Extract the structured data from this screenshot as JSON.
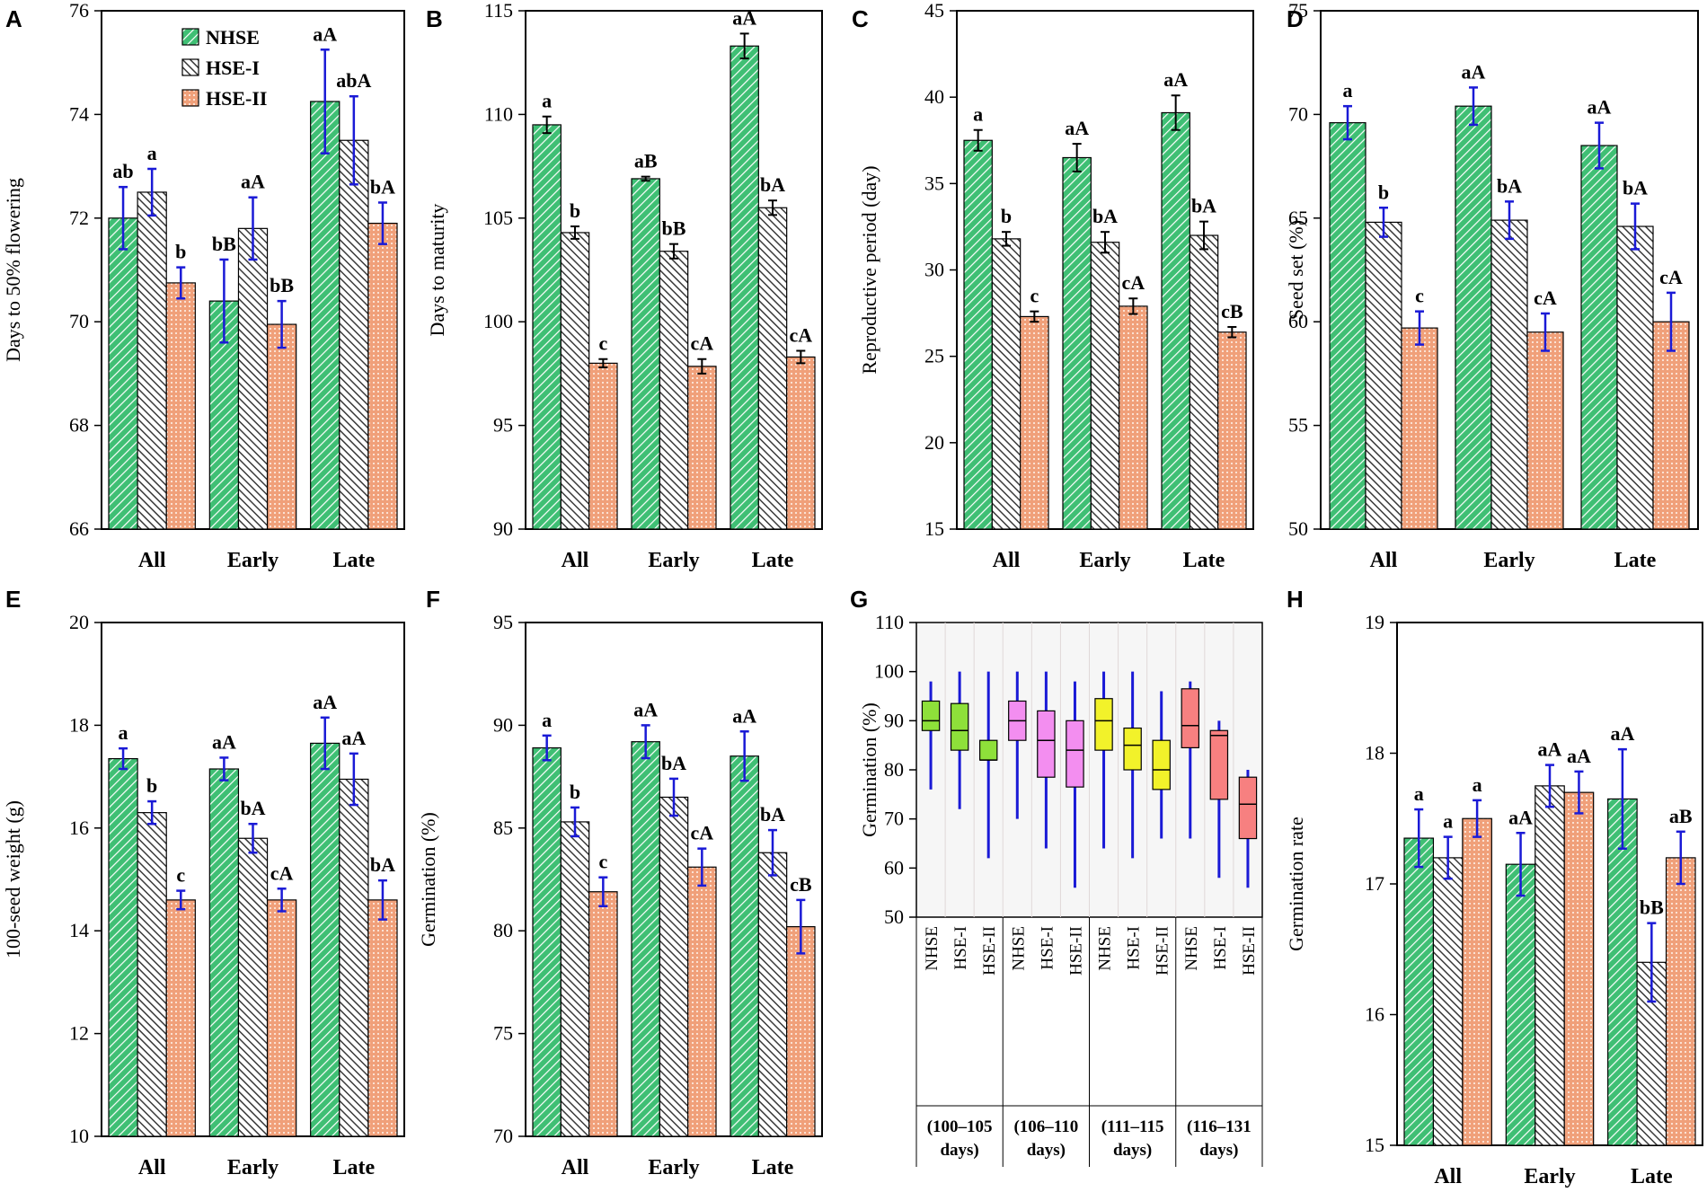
{
  "colors": {
    "nhse": "#3fbf74",
    "hse1": "#3a3a3a",
    "hse2": "#f0a07a",
    "error_bar": "#1a1ad6"
  },
  "legend": [
    "NHSE",
    "HSE-I",
    "HSE-II"
  ],
  "chart_data": [
    {
      "panel": "A",
      "type": "bar",
      "ylabel": "Days to 50% flowering",
      "ylim": [
        66,
        76
      ],
      "yticks": [
        66,
        68,
        70,
        72,
        74,
        76
      ],
      "categories": [
        "All",
        "Early",
        "Late"
      ],
      "show_legend": true,
      "series": [
        {
          "name": "NHSE",
          "values": [
            72.0,
            70.4,
            74.25
          ],
          "errors": [
            0.6,
            0.8,
            1.0
          ],
          "labels": [
            "ab",
            "",
            "aA"
          ]
        },
        {
          "name": "HSE-I",
          "values": [
            72.5,
            71.8,
            73.5
          ],
          "errors": [
            0.45,
            0.6,
            0.85
          ],
          "labels": [
            "a",
            "aA",
            "abA"
          ]
        },
        {
          "name": "HSE-II",
          "values": [
            70.75,
            69.95,
            71.9
          ],
          "errors": [
            0.3,
            0.45,
            0.4
          ],
          "labels": [
            "b",
            "bB",
            "bA"
          ]
        }
      ],
      "extra_labels": [
        {
          "category": 1,
          "series": 0,
          "text": "bB"
        }
      ]
    },
    {
      "panel": "B",
      "type": "bar",
      "ylabel": "Days to maturity",
      "ylim": [
        90,
        115
      ],
      "yticks": [
        90,
        95,
        100,
        105,
        110,
        115
      ],
      "categories": [
        "All",
        "Early",
        "Late"
      ],
      "show_legend": false,
      "series": [
        {
          "name": "NHSE",
          "values": [
            109.5,
            106.9,
            113.3
          ],
          "errors": [
            0.4,
            0.1,
            0.6
          ],
          "labels": [
            "a",
            "aB",
            "aA"
          ]
        },
        {
          "name": "HSE-I",
          "values": [
            104.3,
            103.4,
            105.5
          ],
          "errors": [
            0.3,
            0.35,
            0.35
          ],
          "labels": [
            "b",
            "bB",
            "bA"
          ]
        },
        {
          "name": "HSE-II",
          "values": [
            98.0,
            97.85,
            98.3
          ],
          "errors": [
            0.2,
            0.35,
            0.3
          ],
          "labels": [
            "c",
            "cA",
            "cA"
          ]
        }
      ],
      "black_errors": true
    },
    {
      "panel": "C",
      "type": "bar",
      "ylabel": "Reproductive period (day)",
      "ylim": [
        15,
        45
      ],
      "yticks": [
        15,
        20,
        25,
        30,
        35,
        40,
        45
      ],
      "categories": [
        "All",
        "Early",
        "Late"
      ],
      "show_legend": false,
      "series": [
        {
          "name": "NHSE",
          "values": [
            37.5,
            36.5,
            39.1
          ],
          "errors": [
            0.6,
            0.8,
            1.0
          ],
          "labels": [
            "a",
            "aA",
            "aA"
          ]
        },
        {
          "name": "HSE-I",
          "values": [
            31.8,
            31.6,
            32.0
          ],
          "errors": [
            0.4,
            0.6,
            0.8
          ],
          "labels": [
            "b",
            "bA",
            "bA"
          ]
        },
        {
          "name": "HSE-II",
          "values": [
            27.3,
            27.9,
            26.4
          ],
          "errors": [
            0.3,
            0.45,
            0.3
          ],
          "labels": [
            "c",
            "cA",
            "cB"
          ]
        }
      ],
      "black_errors": true
    },
    {
      "panel": "D",
      "type": "bar",
      "ylabel": "Seed set (%)",
      "ylim": [
        50,
        75
      ],
      "yticks": [
        50,
        55,
        60,
        65,
        70,
        75
      ],
      "categories": [
        "All",
        "Early",
        "Late"
      ],
      "show_legend": false,
      "series": [
        {
          "name": "NHSE",
          "values": [
            69.6,
            70.4,
            68.5
          ],
          "errors": [
            0.8,
            0.9,
            1.1
          ],
          "labels": [
            "a",
            "aA",
            "aA"
          ]
        },
        {
          "name": "HSE-I",
          "values": [
            64.8,
            64.9,
            64.6
          ],
          "errors": [
            0.7,
            0.9,
            1.1
          ],
          "labels": [
            "b",
            "bA",
            "bA"
          ]
        },
        {
          "name": "HSE-II",
          "values": [
            59.7,
            59.5,
            60.0
          ],
          "errors": [
            0.8,
            0.9,
            1.4
          ],
          "labels": [
            "c",
            "cA",
            "cA"
          ]
        }
      ]
    },
    {
      "panel": "E",
      "type": "bar",
      "ylabel": "100-seed weight (g)",
      "ylim": [
        10,
        20
      ],
      "yticks": [
        10,
        12,
        14,
        16,
        18,
        20
      ],
      "categories": [
        "All",
        "Early",
        "Late"
      ],
      "show_legend": false,
      "series": [
        {
          "name": "NHSE",
          "values": [
            17.35,
            17.15,
            17.65
          ],
          "errors": [
            0.2,
            0.22,
            0.5
          ],
          "labels": [
            "a",
            "aA",
            "aA"
          ]
        },
        {
          "name": "HSE-I",
          "values": [
            16.3,
            15.8,
            16.95
          ],
          "errors": [
            0.22,
            0.28,
            0.5
          ],
          "labels": [
            "b",
            "bA",
            "aA"
          ]
        },
        {
          "name": "HSE-II",
          "values": [
            14.6,
            14.6,
            14.6
          ],
          "errors": [
            0.18,
            0.22,
            0.38
          ],
          "labels": [
            "c",
            "cA",
            "bA"
          ]
        }
      ]
    },
    {
      "panel": "F",
      "type": "bar",
      "ylabel": "Germination (%)",
      "ylim": [
        70,
        95
      ],
      "yticks": [
        70,
        75,
        80,
        85,
        90,
        95
      ],
      "categories": [
        "All",
        "Early",
        "Late"
      ],
      "show_legend": false,
      "series": [
        {
          "name": "NHSE",
          "values": [
            88.9,
            89.2,
            88.5
          ],
          "errors": [
            0.6,
            0.8,
            1.2
          ],
          "labels": [
            "a",
            "aA",
            "aA"
          ]
        },
        {
          "name": "HSE-I",
          "values": [
            85.3,
            86.5,
            83.8
          ],
          "errors": [
            0.7,
            0.9,
            1.1
          ],
          "labels": [
            "b",
            "bA",
            "bA"
          ]
        },
        {
          "name": "HSE-II",
          "values": [
            81.9,
            83.1,
            80.2
          ],
          "errors": [
            0.7,
            0.9,
            1.3
          ],
          "labels": [
            "c",
            "cA",
            "cB"
          ]
        }
      ]
    },
    {
      "panel": "G",
      "type": "box",
      "ylabel": "Germination (%)",
      "ylim": [
        50,
        110
      ],
      "yticks": [
        50,
        60,
        70,
        80,
        90,
        100,
        110
      ],
      "categories": [
        "NHSE",
        "HSE-I",
        "HSE-II",
        "NHSE",
        "HSE-I",
        "HSE-II",
        "NHSE",
        "HSE-I",
        "HSE-II",
        "NHSE",
        "HSE-I",
        "HSE-II"
      ],
      "groups": [
        {
          "line1": "(100–105",
          "line2": "days)"
        },
        {
          "line1": "(106–110",
          "line2": "days)"
        },
        {
          "line1": "(111–115",
          "line2": "days)"
        },
        {
          "line1": "(116–131",
          "line2": "days)"
        }
      ],
      "group_colors": [
        "#8ee03a",
        "#f38ef0",
        "#f2f22a",
        "#f78080"
      ],
      "boxes": [
        {
          "min": 76,
          "q1": 88,
          "median": 90,
          "q3": 94,
          "max": 98
        },
        {
          "min": 72,
          "q1": 84,
          "median": 88,
          "q3": 93.5,
          "max": 100
        },
        {
          "min": 62,
          "q1": 82,
          "median": 82,
          "q3": 86,
          "max": 100
        },
        {
          "min": 70,
          "q1": 86,
          "median": 90,
          "q3": 94,
          "max": 100
        },
        {
          "min": 64,
          "q1": 78.5,
          "median": 86,
          "q3": 92,
          "max": 100
        },
        {
          "min": 56,
          "q1": 76.5,
          "median": 84,
          "q3": 90,
          "max": 98
        },
        {
          "min": 64,
          "q1": 84,
          "median": 90,
          "q3": 94.5,
          "max": 100
        },
        {
          "min": 62,
          "q1": 80,
          "median": 85,
          "q3": 88.5,
          "max": 100
        },
        {
          "min": 66,
          "q1": 76,
          "median": 80,
          "q3": 86,
          "max": 96
        },
        {
          "min": 66,
          "q1": 84.5,
          "median": 89,
          "q3": 96.5,
          "max": 98
        },
        {
          "min": 58,
          "q1": 74,
          "median": 87,
          "q3": 88,
          "max": 90
        },
        {
          "min": 56,
          "q1": 66,
          "median": 73,
          "q3": 78.5,
          "max": 80
        }
      ]
    },
    {
      "panel": "H",
      "type": "bar",
      "ylabel": "Germination rate",
      "ylim": [
        15,
        19
      ],
      "yticks": [
        15,
        16,
        17,
        18,
        19
      ],
      "categories": [
        "All",
        "Early",
        "Late"
      ],
      "show_legend": false,
      "series": [
        {
          "name": "NHSE",
          "values": [
            17.35,
            17.15,
            17.65
          ],
          "errors": [
            0.22,
            0.24,
            0.38
          ],
          "labels": [
            "a",
            "aA",
            "aA"
          ]
        },
        {
          "name": "HSE-I",
          "values": [
            17.2,
            17.75,
            16.4
          ],
          "errors": [
            0.16,
            0.16,
            0.3
          ],
          "labels": [
            "a",
            "aA",
            "bB"
          ]
        },
        {
          "name": "HSE-II",
          "values": [
            17.5,
            17.7,
            17.2
          ],
          "errors": [
            0.14,
            0.16,
            0.2
          ],
          "labels": [
            "a",
            "aA",
            "aB"
          ]
        }
      ]
    }
  ]
}
